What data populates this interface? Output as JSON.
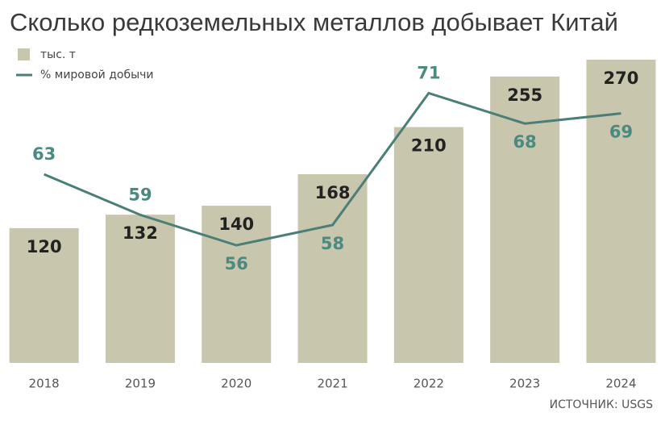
{
  "chart_data": {
    "type": "bar-line",
    "title": "Сколько редкоземельных металлов добывает Китай",
    "categories": [
      "2018",
      "2019",
      "2020",
      "2021",
      "2022",
      "2023",
      "2024"
    ],
    "series": [
      {
        "name": "тыс. т",
        "type": "bar",
        "color": "#c8c6ad",
        "values": [
          120,
          132,
          140,
          168,
          210,
          255,
          270
        ]
      },
      {
        "name": "% мировой добычи",
        "type": "line",
        "axis": "y2",
        "color": "#4a7f78",
        "values": [
          63,
          59,
          56,
          58,
          71,
          68,
          69
        ]
      }
    ],
    "ylim": [
      0,
      270
    ],
    "y2lim": [
      44.4,
      74.3
    ],
    "source": "ИСТОЧНИК: USGS"
  }
}
